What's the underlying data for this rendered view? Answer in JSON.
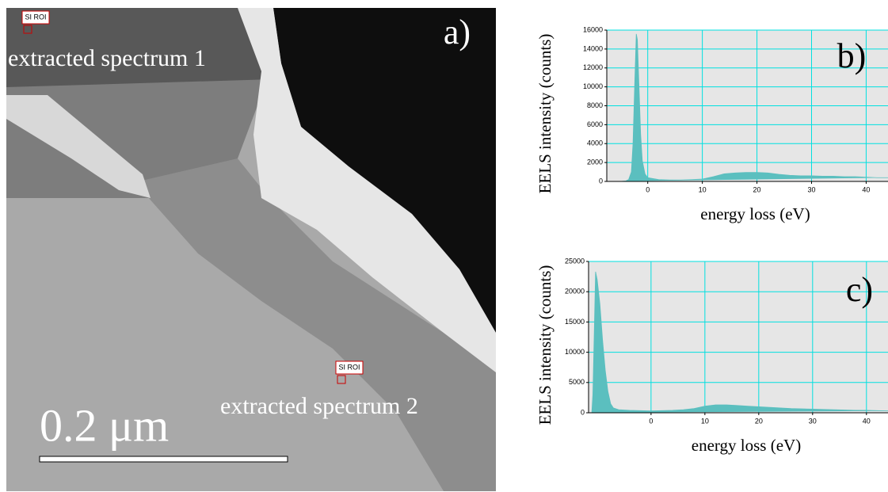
{
  "image": {
    "label": "a)",
    "roi_1": "SI ROI",
    "roi_2": "SI ROI",
    "caption_1": "extracted spectrum 1",
    "caption_2": "extracted spectrum 2",
    "scale_bar": "0.2 μm"
  },
  "chart_data": [
    {
      "type": "area",
      "label": "b)",
      "xlabel": "energy loss (eV)",
      "ylabel": "EELS intensity (counts)",
      "color": "#5bbfbf",
      "background": "#e6e6e6",
      "grid": true,
      "grid_color": "#00e0e0",
      "x": [
        -7.5,
        -5,
        -4,
        -3.5,
        -3,
        -2.7,
        -2.4,
        -2.1,
        -1.9,
        -1.6,
        -1.3,
        -1,
        -0.5,
        0,
        2,
        4,
        6,
        8,
        10,
        12,
        14,
        16,
        18,
        20,
        22,
        24,
        26,
        28,
        30,
        32,
        34,
        36,
        38,
        40,
        42,
        44
      ],
      "values": [
        0,
        0,
        50,
        200,
        1000,
        4000,
        10000,
        15600,
        15000,
        10000,
        5000,
        2200,
        800,
        400,
        200,
        150,
        150,
        200,
        250,
        500,
        800,
        900,
        950,
        950,
        900,
        750,
        650,
        600,
        600,
        550,
        550,
        500,
        500,
        450,
        400,
        400
      ],
      "xlim": [
        -7.5,
        44
      ],
      "ylim": [
        0,
        16000
      ],
      "xticks": [
        0,
        10,
        20,
        30,
        40
      ],
      "yticks": [
        0,
        2000,
        4000,
        6000,
        8000,
        10000,
        12000,
        14000,
        16000
      ]
    },
    {
      "type": "area",
      "label": "c)",
      "xlabel": "energy loss (eV)",
      "ylabel": "EELS intensity (counts)",
      "color": "#5bbfbf",
      "background": "#e6e6e6",
      "grid": true,
      "grid_color": "#00e0e0",
      "x": [
        -11.6,
        -11,
        -10.8,
        -10.5,
        -10.3,
        -10,
        -9.5,
        -9,
        -8.5,
        -8,
        -7.5,
        -7,
        -6,
        -4,
        -2,
        0,
        2,
        4,
        6,
        8,
        10,
        12,
        14,
        16,
        18,
        20,
        22,
        24,
        26,
        28,
        30,
        32,
        34,
        36,
        38,
        40,
        42,
        44
      ],
      "values": [
        0,
        0,
        3000,
        15000,
        23300,
        22000,
        18000,
        12000,
        7000,
        3500,
        1500,
        800,
        500,
        400,
        350,
        300,
        350,
        400,
        500,
        700,
        1100,
        1300,
        1300,
        1200,
        1100,
        1000,
        900,
        800,
        700,
        650,
        600,
        550,
        500,
        450,
        400,
        400,
        350,
        300
      ],
      "xlim": [
        -11.6,
        44
      ],
      "ylim": [
        0,
        25000
      ],
      "xticks": [
        0,
        10,
        20,
        30,
        40
      ],
      "yticks": [
        0,
        5000,
        10000,
        15000,
        20000,
        25000
      ]
    }
  ]
}
